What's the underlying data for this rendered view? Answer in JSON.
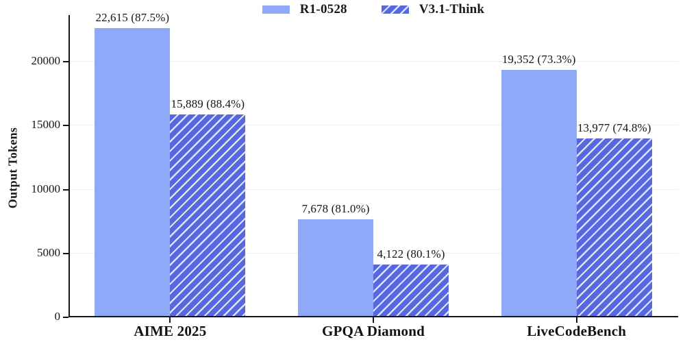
{
  "chart_data": {
    "type": "bar",
    "title": "",
    "xlabel": "",
    "ylabel": "Output Tokens",
    "categories": [
      "AIME 2025",
      "GPQA Diamond",
      "LiveCodeBench"
    ],
    "series": [
      {
        "name": "R1-0528",
        "values": [
          22615,
          7678,
          19352
        ],
        "accuracy_pct": [
          87.5,
          81.0,
          73.3
        ],
        "data_labels": [
          "22,615 (87.5%)",
          "7,678 (81.0%)",
          "19,352 (73.3%)"
        ],
        "color": "#8fa9f9",
        "hatch": "none",
        "hatch_color": ""
      },
      {
        "name": "V3.1-Think",
        "values": [
          15889,
          4122,
          13977
        ],
        "accuracy_pct": [
          88.4,
          80.1,
          74.8
        ],
        "data_labels": [
          "15,889 (88.4%)",
          "4,122 (80.1%)",
          "13,977 (74.8%)"
        ],
        "color": "#5667e0",
        "hatch": "/",
        "hatch_color": "#dce6f9"
      }
    ],
    "yticks": [
      0,
      5000,
      10000,
      15000,
      20000
    ],
    "ylim": [
      0,
      23650
    ],
    "grid": "horizontal-faint",
    "legend_position": "top-center",
    "axis_color": "#151515"
  }
}
